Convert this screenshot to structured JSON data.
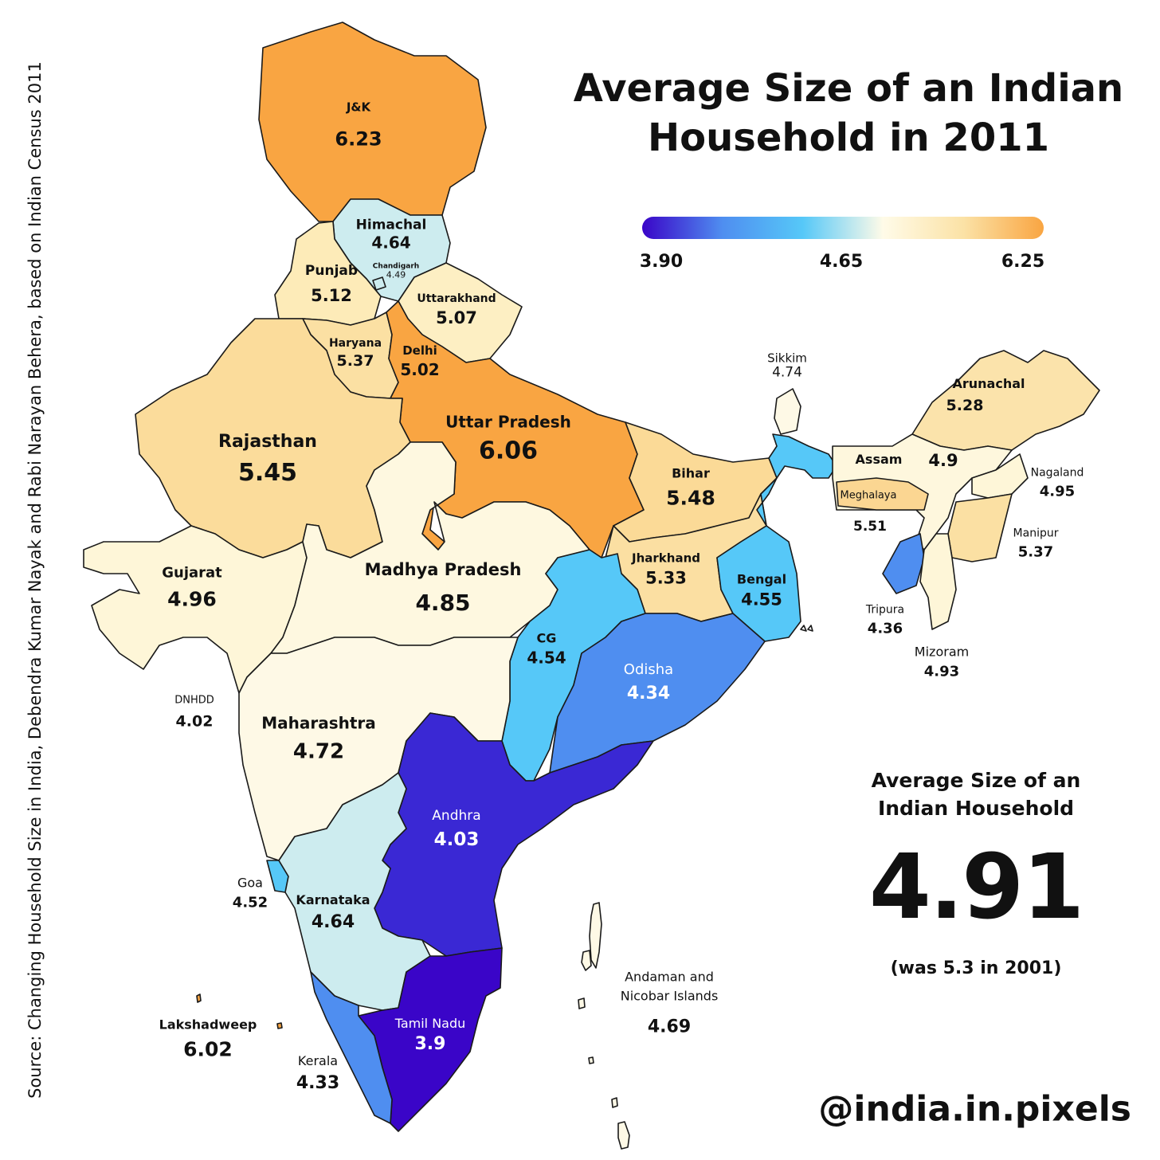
{
  "title_line1": "Average Size of an Indian",
  "title_line2": "Household in 2011",
  "legend": {
    "min_label": "3.90",
    "mid_label": "4.65",
    "max_label": "6.25",
    "colors": [
      "#3a05c8",
      "#4f8ef0",
      "#56c8f8",
      "#fffbe8",
      "#fbe2a6",
      "#f9a542"
    ]
  },
  "source": "Source: Changing Household Size in India, Debendra Kumar Nayak and Rabi Narayan Behera, based on Indian Census 2011",
  "summary": {
    "heading_line1": "Average Size of an",
    "heading_line2": "Indian Household",
    "value": "4.91",
    "previous": "(was 5.3 in 2001)"
  },
  "handle": "@india.in.pixels",
  "regions": [
    {
      "name": "J&K",
      "value": "6.23",
      "fill": "#f9a542"
    },
    {
      "name": "Himachal",
      "value": "4.64",
      "fill": "#cdecef"
    },
    {
      "name": "Chandigarh",
      "value": "4.49",
      "fill": "#cdecef"
    },
    {
      "name": "Punjab",
      "value": "5.12",
      "fill": "#fdebb8"
    },
    {
      "name": "Uttarakhand",
      "value": "5.07",
      "fill": "#fdefc3"
    },
    {
      "name": "Haryana",
      "value": "5.37",
      "fill": "#fbe0a3"
    },
    {
      "name": "Delhi",
      "value": "5.02",
      "fill": "#f9a542"
    },
    {
      "name": "Uttar Pradesh",
      "value": "6.06",
      "fill": "#f9a542"
    },
    {
      "name": "Rajasthan",
      "value": "5.45",
      "fill": "#fbdc9b"
    },
    {
      "name": "Gujarat",
      "value": "4.96",
      "fill": "#fef6d8"
    },
    {
      "name": "Madhya Pradesh",
      "value": "4.85",
      "fill": "#fef8e0"
    },
    {
      "name": "Bihar",
      "value": "5.48",
      "fill": "#fbda97"
    },
    {
      "name": "Jharkhand",
      "value": "5.33",
      "fill": "#fbdfa2"
    },
    {
      "name": "Bengal",
      "value": "4.55",
      "fill": "#56c8f8"
    },
    {
      "name": "CG",
      "value": "4.54",
      "fill": "#56c8f8"
    },
    {
      "name": "Odisha",
      "value": "4.34",
      "fill": "#4f8ef0"
    },
    {
      "name": "Sikkim",
      "value": "4.74",
      "fill": "#fef9e6"
    },
    {
      "name": "Arunachal",
      "value": "5.28",
      "fill": "#fbe3ab"
    },
    {
      "name": "Assam",
      "value": "4.9",
      "fill": "#fef7dd"
    },
    {
      "name": "Meghalaya",
      "value": "5.51",
      "fill": "#fbd692"
    },
    {
      "name": "Nagaland",
      "value": "4.95",
      "fill": "#fef6d8"
    },
    {
      "name": "Manipur",
      "value": "5.37",
      "fill": "#fbe0a3"
    },
    {
      "name": "Tripura",
      "value": "4.36",
      "fill": "#4f8ef0"
    },
    {
      "name": "Mizoram",
      "value": "4.93",
      "fill": "#fef6d8"
    },
    {
      "name": "DNHDD",
      "value": "4.02",
      "fill": "#3a1ec8"
    },
    {
      "name": "Maharashtra",
      "value": "4.72",
      "fill": "#fef9e6"
    },
    {
      "name": "Andhra",
      "value": "4.03",
      "fill": "#3a28d4"
    },
    {
      "name": "Goa",
      "value": "4.52",
      "fill": "#56c8f8"
    },
    {
      "name": "Karnataka",
      "value": "4.64",
      "fill": "#cdecef"
    },
    {
      "name": "Tamil Nadu",
      "value": "3.9",
      "fill": "#3a05c8"
    },
    {
      "name": "Kerala",
      "value": "4.33",
      "fill": "#4f8ef0"
    },
    {
      "name": "Lakshadweep",
      "value": "6.02",
      "fill": "#f9a542"
    },
    {
      "name": "Andaman and Nicobar Islands",
      "value": "4.69",
      "fill": "#fef9e6"
    }
  ]
}
